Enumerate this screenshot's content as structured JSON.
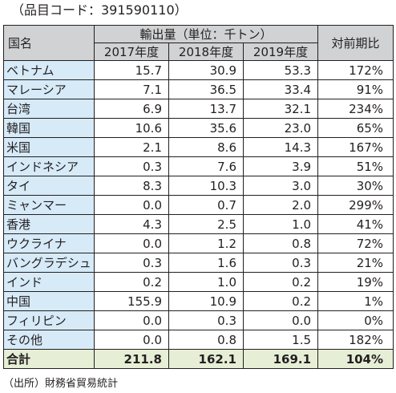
{
  "code_line": "（品目コード：391590110）",
  "header": {
    "country": "国名",
    "export_volume": "輸出量（単位：千トン）",
    "years": [
      "2017年度",
      "2018年度",
      "2019年度"
    ],
    "ratio": "対前期比"
  },
  "rows": [
    {
      "country": "ベトナム",
      "y2017": "15.7",
      "y2018": "30.9",
      "y2019": "53.3",
      "ratio": "172%"
    },
    {
      "country": "マレーシア",
      "y2017": "7.1",
      "y2018": "36.5",
      "y2019": "33.4",
      "ratio": "91%"
    },
    {
      "country": "台湾",
      "y2017": "6.9",
      "y2018": "13.7",
      "y2019": "32.1",
      "ratio": "234%"
    },
    {
      "country": "韓国",
      "y2017": "10.6",
      "y2018": "35.6",
      "y2019": "23.0",
      "ratio": "65%"
    },
    {
      "country": "米国",
      "y2017": "2.1",
      "y2018": "8.6",
      "y2019": "14.3",
      "ratio": "167%"
    },
    {
      "country": "インドネシア",
      "y2017": "0.3",
      "y2018": "7.6",
      "y2019": "3.9",
      "ratio": "51%"
    },
    {
      "country": "タイ",
      "y2017": "8.3",
      "y2018": "10.3",
      "y2019": "3.0",
      "ratio": "30%"
    },
    {
      "country": "ミャンマー",
      "y2017": "0.0",
      "y2018": "0.7",
      "y2019": "2.0",
      "ratio": "299%"
    },
    {
      "country": "香港",
      "y2017": "4.3",
      "y2018": "2.5",
      "y2019": "1.0",
      "ratio": "41%"
    },
    {
      "country": "ウクライナ",
      "y2017": "0.0",
      "y2018": "1.2",
      "y2019": "0.8",
      "ratio": "72%"
    },
    {
      "country": "バングラデシュ",
      "y2017": "0.3",
      "y2018": "1.6",
      "y2019": "0.3",
      "ratio": "21%"
    },
    {
      "country": "インド",
      "y2017": "0.2",
      "y2018": "1.0",
      "y2019": "0.2",
      "ratio": "19%"
    },
    {
      "country": "中国",
      "y2017": "155.9",
      "y2018": "10.9",
      "y2019": "0.2",
      "ratio": "1%"
    },
    {
      "country": "フィリピン",
      "y2017": "0.0",
      "y2018": "0.3",
      "y2019": "0.0",
      "ratio": "0%"
    },
    {
      "country": "その他",
      "y2017": "0.0",
      "y2018": "0.8",
      "y2019": "1.5",
      "ratio": "182%"
    }
  ],
  "total": {
    "country": "合計",
    "y2017": "211.8",
    "y2018": "162.1",
    "y2019": "169.1",
    "ratio": "104%"
  },
  "source": "（出所）財務省貿易統計",
  "colors": {
    "header_bg": "#d0d2d3",
    "country_bg": "#d6eaf8",
    "total_bg": "#e6eed6"
  }
}
